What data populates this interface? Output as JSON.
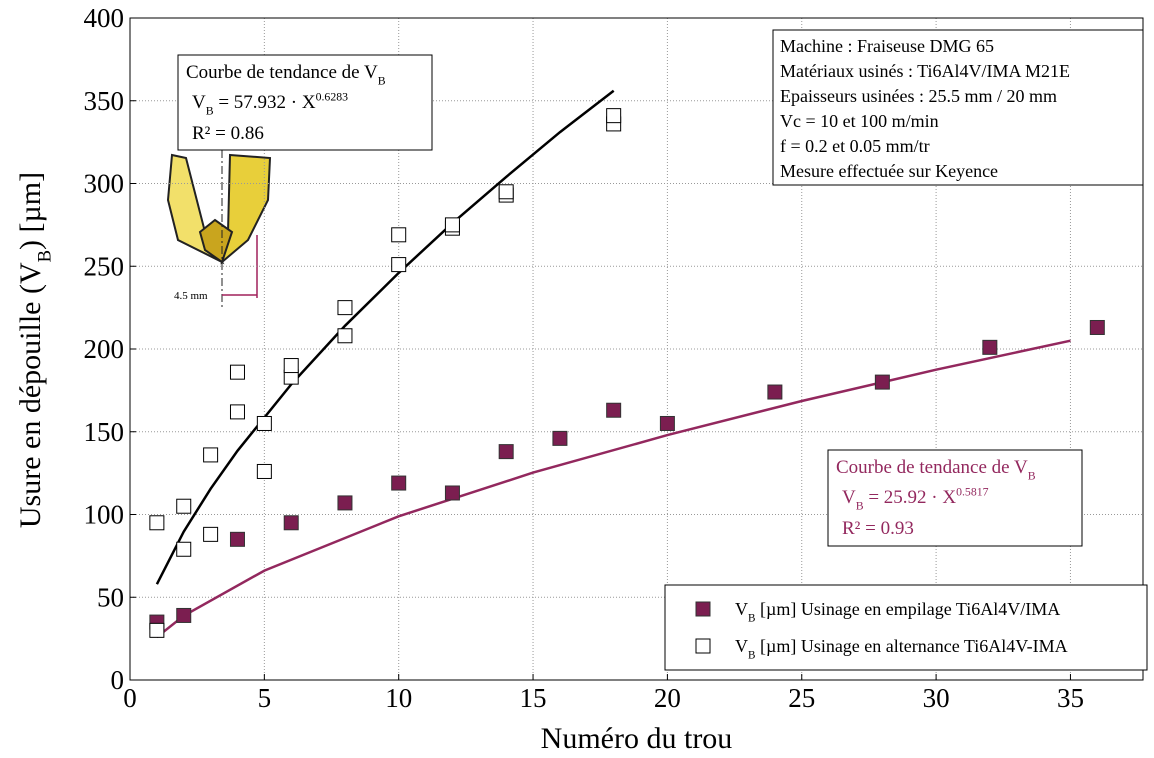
{
  "chart_data": {
    "type": "scatter",
    "x_label": "Numéro du trou",
    "y_label": {
      "text": "Usure en dépouille (V",
      "sub": "B",
      "end": ") [µm]"
    },
    "xlim": [
      0,
      37.7
    ],
    "ylim": [
      0,
      400
    ],
    "xticks": [
      0,
      5,
      10,
      15,
      20,
      25,
      30,
      35
    ],
    "yticks": [
      0,
      50,
      100,
      150,
      200,
      250,
      300,
      350,
      400
    ],
    "grid": true,
    "series": [
      {
        "name": {
          "main": "V",
          "sub": "B",
          "rest": " [µm] Usinage en empilage Ti6Al4V/IMA"
        },
        "color": "#7b1e50",
        "marker": "filled",
        "x": [
          1,
          2,
          4,
          6,
          8,
          10,
          12,
          14,
          16,
          18,
          20,
          24,
          28,
          32,
          36
        ],
        "values": [
          35,
          39,
          85,
          95,
          107,
          119,
          113,
          138,
          146,
          163,
          155,
          174,
          180,
          201,
          213
        ]
      },
      {
        "name": {
          "main": "V",
          "sub": "B",
          "rest": " [µm] Usinage en alternance Ti6Al4V-IMA"
        },
        "color": "#000000",
        "marker": "open",
        "x": [
          1,
          1,
          2,
          2,
          3,
          3,
          4,
          4,
          5,
          5,
          6,
          6,
          8,
          8,
          10,
          10,
          12,
          12,
          14,
          14,
          18,
          18
        ],
        "values": [
          30,
          95,
          79,
          105,
          88,
          136,
          162,
          186,
          126,
          155,
          183,
          190,
          208,
          225,
          251,
          269,
          273,
          275,
          293,
          295,
          336,
          341
        ]
      }
    ],
    "trends": [
      {
        "color": "#000000",
        "x": [
          1,
          2,
          3,
          4,
          6,
          8,
          10,
          12,
          14,
          16,
          18
        ],
        "values": [
          57.9,
          89.6,
          115.5,
          138.5,
          178.6,
          214,
          246,
          276,
          304,
          331,
          356
        ],
        "label": {
          "title": "Courbe de tendance de V",
          "title_sub": "B",
          "eq_v": "V",
          "eq_sub": "B",
          "eq_mid": " = 57.932 · X",
          "eq_sup": "0.6283",
          "r2": "R² = 0.86"
        }
      },
      {
        "color": "#93285e",
        "x": [
          1,
          2,
          5,
          10,
          15,
          20,
          25,
          30,
          35
        ],
        "values": [
          25.9,
          38.8,
          66.1,
          98.9,
          125.3,
          148,
          168.6,
          187.5,
          205
        ],
        "label": {
          "title": "Courbe de tendance de V",
          "title_sub": "B",
          "eq_v": "V",
          "eq_sub": "B",
          "eq_mid": " = 25.92 · X",
          "eq_sup": "0.5817",
          "r2": "R² = 0.93"
        }
      }
    ],
    "info": [
      "Machine : Fraiseuse DMG 65",
      "Matériaux usinés : Ti6Al4V/IMA M21E",
      "Epaisseurs usinées : 25.5 mm / 20 mm",
      "Vc = 10 et 100 m/min",
      "f  = 0.2 et 0.05 mm/tr",
      "Mesure effectuée sur Keyence"
    ],
    "drill_label": "4.5 mm"
  }
}
